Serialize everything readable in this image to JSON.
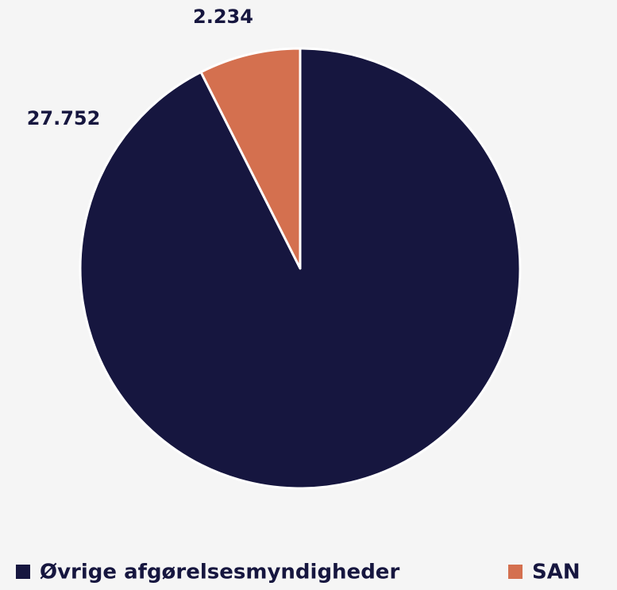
{
  "chart_data": {
    "type": "pie",
    "categories": [
      "Øvrige afgørelsesmyndigheder",
      "SAN"
    ],
    "values": [
      27752,
      2234
    ],
    "value_labels": [
      "27.752",
      "2.234"
    ],
    "colors": [
      "#16163f",
      "#d4704f"
    ],
    "legend": "bottom"
  }
}
